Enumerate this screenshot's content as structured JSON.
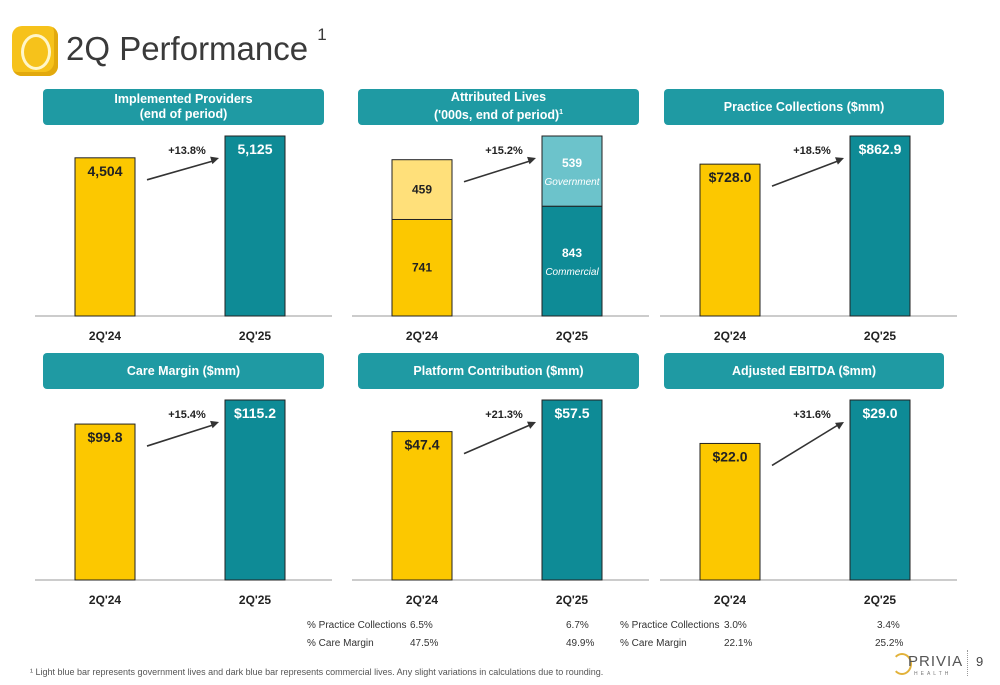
{
  "title": "2Q Performance",
  "title_sup": "1",
  "colors": {
    "prior": "#fcc800",
    "prior_light": "#ffe07a",
    "current": "#0e8b96",
    "current_light": "#6cc3cb",
    "header": "#1f9aa3"
  },
  "panels": [
    {
      "id": "providers",
      "header_line1": "Implemented Providers",
      "header_line2": "(end of period)",
      "header_sup": ""
    },
    {
      "id": "lives",
      "header_line1": "Attributed Lives",
      "header_line2": "('000s, end of period)",
      "header_sup": "1"
    },
    {
      "id": "collections",
      "header_line1": "Practice Collections ($mm)",
      "header_line2": "",
      "header_sup": ""
    },
    {
      "id": "care",
      "header_line1": "Care Margin ($mm)",
      "header_line2": "",
      "header_sup": ""
    },
    {
      "id": "platform",
      "header_line1": "Platform Contribution ($mm)",
      "header_line2": "",
      "header_sup": ""
    },
    {
      "id": "ebitda",
      "header_line1": "Adjusted EBITDA ($mm)",
      "header_line2": "",
      "header_sup": ""
    }
  ],
  "chart_data": [
    {
      "type": "bar",
      "title": "Implemented Providers",
      "categories": [
        "2Q'24",
        "2Q'25"
      ],
      "values": [
        4504,
        5125
      ],
      "labels": [
        "4,504",
        "5,125"
      ],
      "growth": "+13.8%",
      "ylim": [
        0,
        5125
      ]
    },
    {
      "type": "bar",
      "title": "Attributed Lives",
      "stacked": true,
      "categories": [
        "2Q'24",
        "2Q'25"
      ],
      "series": [
        {
          "name": "Commercial",
          "values": [
            741,
            843
          ]
        },
        {
          "name": "Government",
          "values": [
            459,
            539
          ]
        }
      ],
      "labels": [
        [
          "741",
          "459"
        ],
        [
          "843",
          "539"
        ]
      ],
      "growth": "+15.2%",
      "ylim": [
        0,
        1382
      ]
    },
    {
      "type": "bar",
      "title": "Practice Collections ($mm)",
      "categories": [
        "2Q'24",
        "2Q'25"
      ],
      "values": [
        728.0,
        862.9
      ],
      "labels": [
        "$728.0",
        "$862.9"
      ],
      "growth": "+18.5%",
      "ylim": [
        0,
        862.9
      ]
    },
    {
      "type": "bar",
      "title": "Care Margin ($mm)",
      "categories": [
        "2Q'24",
        "2Q'25"
      ],
      "values": [
        99.8,
        115.2
      ],
      "labels": [
        "$99.8",
        "$115.2"
      ],
      "growth": "+15.4%",
      "ylim": [
        0,
        115.2
      ]
    },
    {
      "type": "bar",
      "title": "Platform Contribution ($mm)",
      "categories": [
        "2Q'24",
        "2Q'25"
      ],
      "values": [
        47.4,
        57.5
      ],
      "labels": [
        "$47.4",
        "$57.5"
      ],
      "growth": "+21.3%",
      "ylim": [
        0,
        57.5
      ]
    },
    {
      "type": "bar",
      "title": "Adjusted EBITDA ($mm)",
      "categories": [
        "2Q'24",
        "2Q'25"
      ],
      "values": [
        22.0,
        29.0
      ],
      "labels": [
        "$22.0",
        "$29.0"
      ],
      "growth": "+31.6%",
      "ylim": [
        0,
        29.0
      ]
    }
  ],
  "platform_table": {
    "row1_label": "% Practice Collections",
    "row1_prior": "6.5%",
    "row1_current": "6.7%",
    "row2_label": "% Care Margin",
    "row2_prior": "47.5%",
    "row2_current": "49.9%"
  },
  "ebitda_table": {
    "row1_label": "% Practice Collections",
    "row1_prior": "3.0%",
    "row1_current": "3.4%",
    "row2_label": "% Care Margin",
    "row2_prior": "22.1%",
    "row2_current": "25.2%"
  },
  "footnote": "¹ Light blue bar represents government lives and dark blue bar represents commercial lives. Any slight variations in calculations due to rounding.",
  "brand": {
    "name": "PRIVIA",
    "sub": "HEALTH"
  },
  "page_number": "9"
}
